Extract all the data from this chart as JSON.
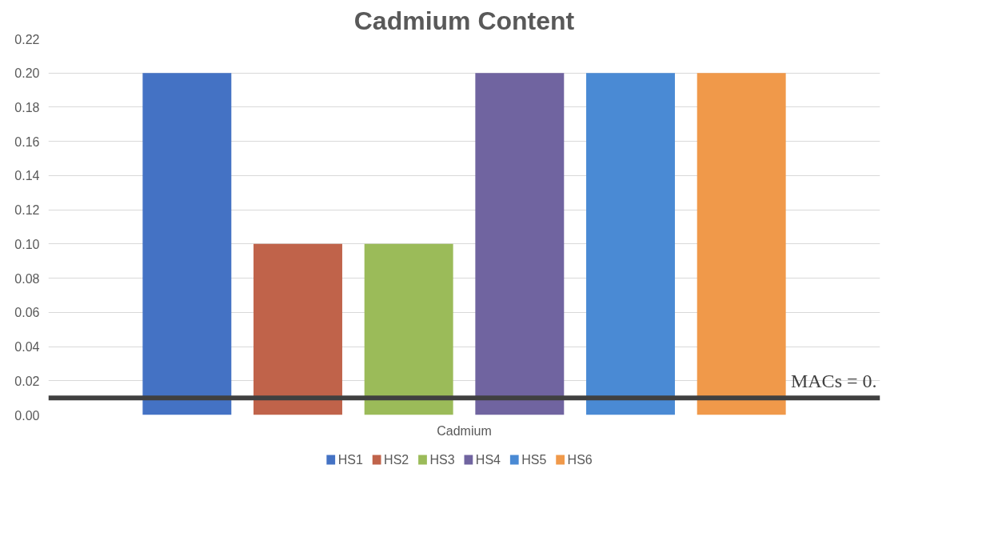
{
  "chart_data": {
    "type": "bar",
    "title": "Cadmium Content",
    "categories": [
      "Cadmium"
    ],
    "series": [
      {
        "name": "HS1",
        "color": "#4472c4",
        "values": [
          0.2
        ]
      },
      {
        "name": "HS2",
        "color": "#c0634a",
        "values": [
          0.1
        ]
      },
      {
        "name": "HS3",
        "color": "#9bbb59",
        "values": [
          0.1
        ]
      },
      {
        "name": "HS4",
        "color": "#7064a0",
        "values": [
          0.2
        ]
      },
      {
        "name": "HS5",
        "color": "#4a8ad4",
        "values": [
          0.2
        ]
      },
      {
        "name": "HS6",
        "color": "#f0994a",
        "values": [
          0.2
        ]
      }
    ],
    "ylim": [
      0,
      0.22
    ],
    "yticks": [
      {
        "value": 0,
        "label": "0.00"
      },
      {
        "value": 0.02,
        "label": "0.02"
      },
      {
        "value": 0.04,
        "label": "0.04"
      },
      {
        "value": 0.06,
        "label": "0.06"
      },
      {
        "value": 0.08,
        "label": "0.08"
      },
      {
        "value": 0.1,
        "label": "0.10"
      },
      {
        "value": 0.12,
        "label": "0.12"
      },
      {
        "value": 0.14,
        "label": "0.14"
      },
      {
        "value": 0.16,
        "label": "0.16"
      },
      {
        "value": 0.18,
        "label": "0.18"
      },
      {
        "value": 0.2,
        "label": "0.20"
      },
      {
        "value": 0.22,
        "label": "0.22"
      }
    ],
    "ref_lines": [
      {
        "axis": "y",
        "value": 0.01,
        "label": "MACs = 0.",
        "color": "#404040"
      }
    ],
    "grid": "y",
    "legend": "bottom"
  }
}
